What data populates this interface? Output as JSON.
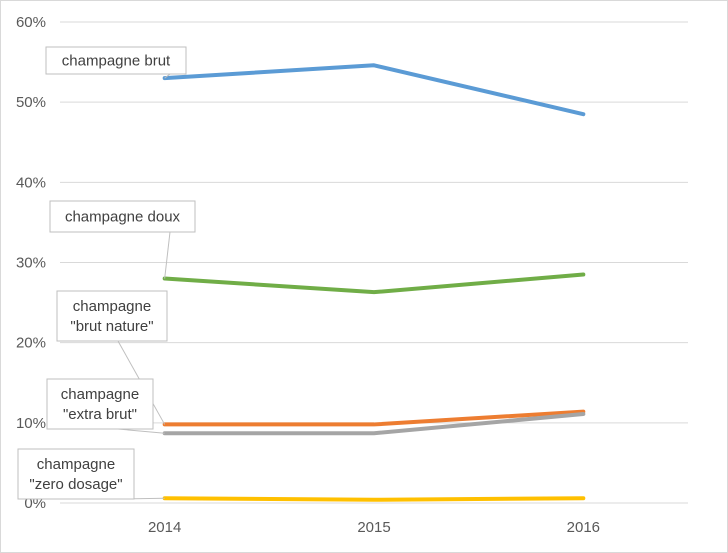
{
  "chart_data": {
    "type": "line",
    "title": "",
    "xlabel": "",
    "ylabel": "",
    "categories": [
      "2014",
      "2015",
      "2016"
    ],
    "ylim": [
      0,
      60
    ],
    "yticks": [
      "0%",
      "10%",
      "20%",
      "30%",
      "40%",
      "50%",
      "60%"
    ],
    "grid": true,
    "series": [
      {
        "name": "champagne brut",
        "values": [
          53,
          54.6,
          48.5
        ],
        "color": "#5b9bd5",
        "label_lines": [
          "champagne brut"
        ]
      },
      {
        "name": "champagne doux",
        "values": [
          28,
          26.3,
          28.5
        ],
        "color": "#70ad47",
        "label_lines": [
          "champagne doux"
        ]
      },
      {
        "name": "champagne \"brut nature\"",
        "values": [
          9.8,
          9.8,
          11.4
        ],
        "color": "#ed7d31",
        "label_lines": [
          "champagne",
          "\"brut nature\""
        ]
      },
      {
        "name": "champagne \"extra brut\"",
        "values": [
          8.7,
          8.7,
          11.1
        ],
        "color": "#a5a5a5",
        "label_lines": [
          "champagne",
          "\"extra brut\""
        ]
      },
      {
        "name": "champagne \"zero dosage\"",
        "values": [
          0.6,
          0.4,
          0.6
        ],
        "color": "#ffc000",
        "label_lines": [
          "champagne",
          "\"zero dosage\""
        ]
      }
    ]
  }
}
